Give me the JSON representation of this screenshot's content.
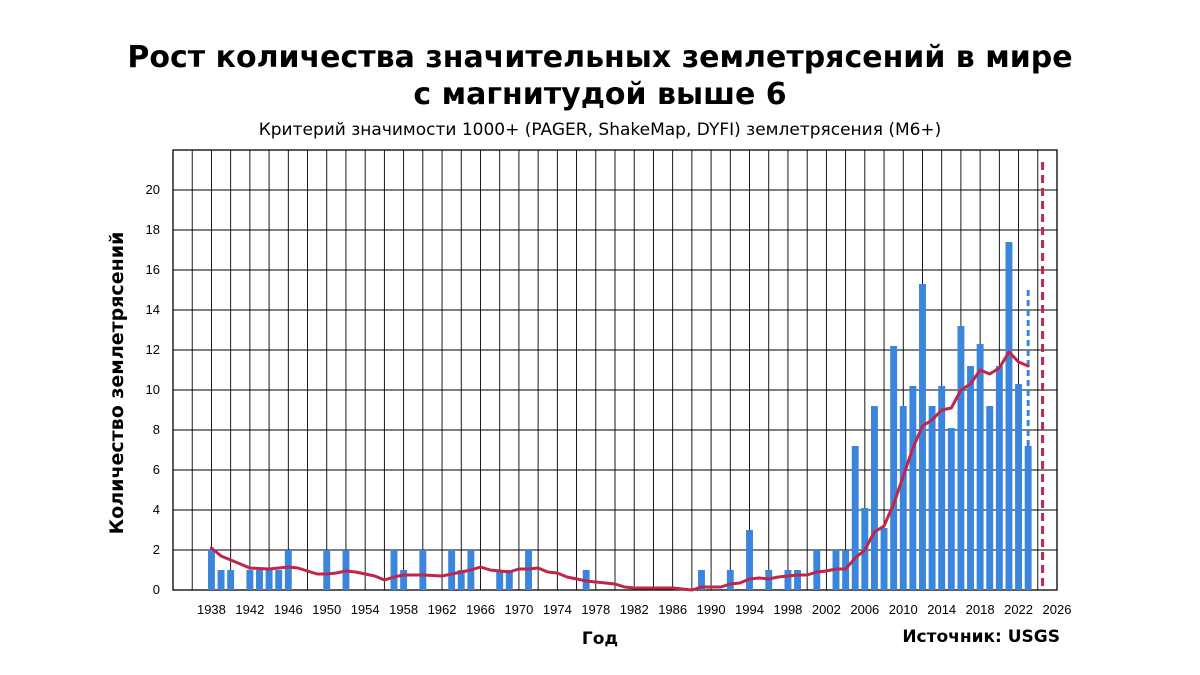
{
  "header": {
    "title_line1": "Рост количества значительных землетрясений в мире",
    "title_line2": "с магнитудой выше 6",
    "subtitle": "Критерий значимости 1000+ (PAGER, ShakeMap, DYFI) землетрясения (M6+)"
  },
  "footer": {
    "source": "Источник: USGS"
  },
  "colors": {
    "bar": "#3b86dc",
    "trend": "#c0254a",
    "grid": "#000000"
  },
  "chart_data": {
    "type": "bar",
    "xlabel": "Год",
    "ylabel": "Количество землетрясений",
    "xlim": [
      1934,
      2026
    ],
    "ylim": [
      0,
      22
    ],
    "x_ticks": [
      1938,
      1942,
      1946,
      1950,
      1954,
      1958,
      1962,
      1966,
      1970,
      1974,
      1978,
      1982,
      1986,
      1990,
      1994,
      1998,
      2002,
      2006,
      2010,
      2014,
      2018,
      2022,
      2026
    ],
    "y_ticks": [
      0,
      2,
      4,
      6,
      8,
      10,
      12,
      14,
      16,
      18,
      20
    ],
    "grid": true,
    "bars": [
      {
        "x": 1938,
        "y": 2
      },
      {
        "x": 1939,
        "y": 1
      },
      {
        "x": 1940,
        "y": 1
      },
      {
        "x": 1942,
        "y": 1
      },
      {
        "x": 1943,
        "y": 1
      },
      {
        "x": 1944,
        "y": 1
      },
      {
        "x": 1945,
        "y": 1
      },
      {
        "x": 1946,
        "y": 2
      },
      {
        "x": 1950,
        "y": 2
      },
      {
        "x": 1952,
        "y": 2
      },
      {
        "x": 1957,
        "y": 2
      },
      {
        "x": 1958,
        "y": 1
      },
      {
        "x": 1960,
        "y": 2
      },
      {
        "x": 1963,
        "y": 2
      },
      {
        "x": 1964,
        "y": 1
      },
      {
        "x": 1965,
        "y": 2
      },
      {
        "x": 1968,
        "y": 1
      },
      {
        "x": 1969,
        "y": 1
      },
      {
        "x": 1971,
        "y": 2
      },
      {
        "x": 1977,
        "y": 1
      },
      {
        "x": 1989,
        "y": 1
      },
      {
        "x": 1992,
        "y": 1
      },
      {
        "x": 1994,
        "y": 3
      },
      {
        "x": 1996,
        "y": 1
      },
      {
        "x": 1998,
        "y": 1
      },
      {
        "x": 1999,
        "y": 1
      },
      {
        "x": 2001,
        "y": 2
      },
      {
        "x": 2003,
        "y": 2
      },
      {
        "x": 2004,
        "y": 2
      },
      {
        "x": 2005,
        "y": 7.2
      },
      {
        "x": 2006,
        "y": 4.1
      },
      {
        "x": 2007,
        "y": 9.2
      },
      {
        "x": 2008,
        "y": 3.1
      },
      {
        "x": 2009,
        "y": 12.2
      },
      {
        "x": 2010,
        "y": 9.2
      },
      {
        "x": 2011,
        "y": 10.2
      },
      {
        "x": 2012,
        "y": 15.3
      },
      {
        "x": 2013,
        "y": 9.2
      },
      {
        "x": 2014,
        "y": 10.2
      },
      {
        "x": 2015,
        "y": 8.1
      },
      {
        "x": 2016,
        "y": 13.2
      },
      {
        "x": 2017,
        "y": 11.2
      },
      {
        "x": 2018,
        "y": 12.3
      },
      {
        "x": 2019,
        "y": 9.2
      },
      {
        "x": 2020,
        "y": 11.2
      },
      {
        "x": 2021,
        "y": 17.4
      },
      {
        "x": 2022,
        "y": 10.3
      },
      {
        "x": 2023,
        "y": 7.2
      }
    ],
    "projected_bar": {
      "x": 2023,
      "from": 7.2,
      "to": 15.2
    },
    "trend_line": {
      "name": "",
      "points": [
        [
          1938,
          2.1
        ],
        [
          1939,
          1.7
        ],
        [
          1940,
          1.5
        ],
        [
          1941,
          1.3
        ],
        [
          1942,
          1.1
        ],
        [
          1944,
          1.05
        ],
        [
          1946,
          1.15
        ],
        [
          1947,
          1.1
        ],
        [
          1948,
          0.95
        ],
        [
          1949,
          0.8
        ],
        [
          1950,
          0.8
        ],
        [
          1951,
          0.85
        ],
        [
          1952,
          0.95
        ],
        [
          1953,
          0.9
        ],
        [
          1954,
          0.8
        ],
        [
          1955,
          0.7
        ],
        [
          1956,
          0.5
        ],
        [
          1957,
          0.65
        ],
        [
          1958,
          0.75
        ],
        [
          1959,
          0.75
        ],
        [
          1960,
          0.75
        ],
        [
          1962,
          0.7
        ],
        [
          1963,
          0.8
        ],
        [
          1964,
          0.9
        ],
        [
          1965,
          1.0
        ],
        [
          1966,
          1.15
        ],
        [
          1967,
          1.0
        ],
        [
          1968,
          0.95
        ],
        [
          1969,
          0.9
        ],
        [
          1970,
          1.05
        ],
        [
          1971,
          1.05
        ],
        [
          1972,
          1.1
        ],
        [
          1973,
          0.9
        ],
        [
          1974,
          0.85
        ],
        [
          1975,
          0.65
        ],
        [
          1976,
          0.55
        ],
        [
          1977,
          0.45
        ],
        [
          1978,
          0.4
        ],
        [
          1979,
          0.35
        ],
        [
          1980,
          0.3
        ],
        [
          1981,
          0.15
        ],
        [
          1982,
          0.1
        ],
        [
          1984,
          0.1
        ],
        [
          1986,
          0.1
        ],
        [
          1987,
          0.05
        ],
        [
          1988,
          0
        ],
        [
          1989,
          0.15
        ],
        [
          1990,
          0.15
        ],
        [
          1991,
          0.15
        ],
        [
          1992,
          0.3
        ],
        [
          1993,
          0.35
        ],
        [
          1994,
          0.55
        ],
        [
          1995,
          0.6
        ],
        [
          1996,
          0.55
        ],
        [
          1997,
          0.65
        ],
        [
          1998,
          0.7
        ],
        [
          1999,
          0.75
        ],
        [
          2000,
          0.75
        ],
        [
          2001,
          0.9
        ],
        [
          2002,
          0.95
        ],
        [
          2003,
          1.05
        ],
        [
          2004,
          1.05
        ],
        [
          2005,
          1.6
        ],
        [
          2006,
          2.0
        ],
        [
          2007,
          2.9
        ],
        [
          2008,
          3.2
        ],
        [
          2009,
          4.3
        ],
        [
          2010,
          5.7
        ],
        [
          2011,
          7.1
        ],
        [
          2012,
          8.2
        ],
        [
          2013,
          8.5
        ],
        [
          2014,
          9.0
        ],
        [
          2015,
          9.1
        ],
        [
          2016,
          10.0
        ],
        [
          2017,
          10.3
        ],
        [
          2018,
          11.0
        ],
        [
          2019,
          10.8
        ],
        [
          2020,
          11.1
        ],
        [
          2021,
          11.9
        ],
        [
          2022,
          11.4
        ],
        [
          2023,
          11.2
        ]
      ]
    },
    "marker_line": {
      "x": 2024.5,
      "style": "dashed"
    }
  }
}
